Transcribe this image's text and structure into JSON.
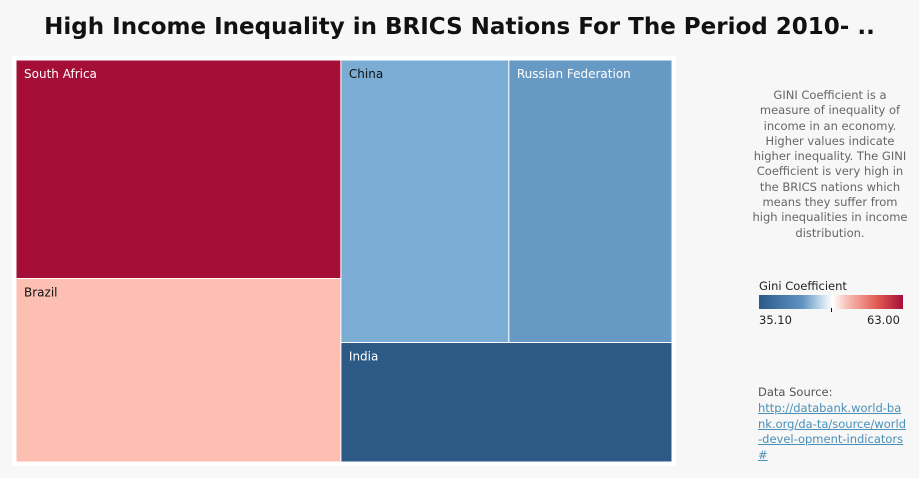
{
  "title": "High Income Inequality in BRICS Nations For The Period 2010- ..",
  "note": "GINI Coefficient is a measure of inequality of income in an economy. Higher values indicate higher inequality. The GINI Coefficient is very high in the BRICS nations which means they suffer from high inequalities in income distribution.",
  "legend": {
    "title": "Gini Coefficient",
    "min_label": "35.10",
    "max_label": "63.00"
  },
  "source": {
    "label": "Data Source:",
    "link_text": "http://databank.world-bank.org/da-ta/source/world-devel-opment-indicators#"
  },
  "chart_data": {
    "type": "treemap",
    "title": "High Income Inequality in BRICS Nations For The Period 2010- ..",
    "color_scale": {
      "min": 35.1,
      "max": 63.0,
      "low_color": "#2b5a8c",
      "high_color": "#a50f37"
    },
    "items": [
      {
        "name": "South Africa",
        "value": 63.0,
        "color": "#a50f37",
        "text_color": "#ffffff"
      },
      {
        "name": "Brazil",
        "value": 52.9,
        "color": "#fcbfb2",
        "text_color": "#111111"
      },
      {
        "name": "China",
        "value": 42.1,
        "color": "#7bacd4",
        "text_color": "#111111"
      },
      {
        "name": "Russian Federation",
        "value": 40.9,
        "color": "#6699c4",
        "text_color": "#ffffff"
      },
      {
        "name": "India",
        "value": 35.1,
        "color": "#2c5986",
        "text_color": "#ffffff"
      }
    ]
  }
}
